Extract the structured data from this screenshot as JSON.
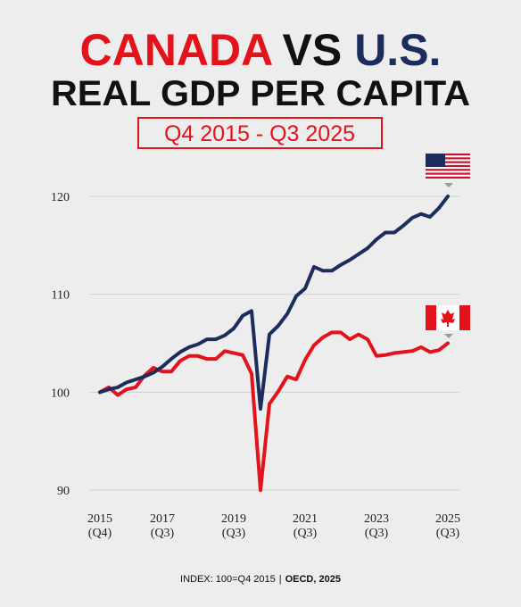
{
  "chart_data": {
    "type": "line",
    "title_parts": [
      "CANADA",
      "VS",
      "U.S."
    ],
    "title_colors": [
      "#e3121b",
      "#111111",
      "#1b2d5c"
    ],
    "subtitle": "REAL GDP PER CAPITA",
    "period": "Q4 2015 - Q3 2025",
    "footer": [
      "INDEX: 100=Q4 2015",
      "|",
      "OECD, 2025"
    ],
    "categories": [
      "2015\n(Q4)",
      null,
      null,
      null,
      null,
      null,
      null,
      "2017\n(Q3)",
      null,
      null,
      null,
      null,
      null,
      null,
      null,
      "2019\n(Q3)",
      null,
      null,
      null,
      null,
      null,
      null,
      null,
      "2021\n(Q3)",
      null,
      null,
      null,
      null,
      null,
      null,
      null,
      "2023\n(Q3)",
      null,
      null,
      null,
      null,
      null,
      null,
      null,
      "2025\n(Q3)"
    ],
    "series": [
      {
        "color": "#1b2d5c",
        "values": [
          100,
          100.3,
          100.5,
          101,
          101.3,
          101.6,
          102,
          102.6,
          103.4,
          104.1,
          104.6,
          104.9,
          105.4,
          105.4,
          105.8,
          106.5,
          107.8,
          108.3,
          98.3,
          105.9,
          106.8,
          108,
          109.8,
          110.6,
          112.8,
          112.4,
          112.4,
          113,
          113.5,
          114.1,
          114.7,
          115.6,
          116.3,
          116.3,
          117,
          117.8,
          118.2,
          117.9,
          118.8,
          120
        ]
      },
      {
        "color": "#e3121b",
        "values": [
          100,
          100.5,
          99.7,
          100.3,
          100.5,
          101.7,
          102.5,
          102.1,
          102.1,
          103.2,
          103.7,
          103.7,
          103.4,
          103.4,
          104.2,
          104,
          103.8,
          101.9,
          90,
          98.8,
          100.1,
          101.6,
          101.3,
          103.3,
          104.8,
          105.6,
          106.1,
          106.1,
          105.4,
          105.9,
          105.4,
          103.7,
          103.8,
          104,
          104.1,
          104.2,
          104.6,
          104.1,
          104.3,
          105
        ]
      }
    ],
    "ylim": [
      88,
      122
    ],
    "yticks": [
      90,
      100,
      110,
      120
    ],
    "grid": true
  }
}
